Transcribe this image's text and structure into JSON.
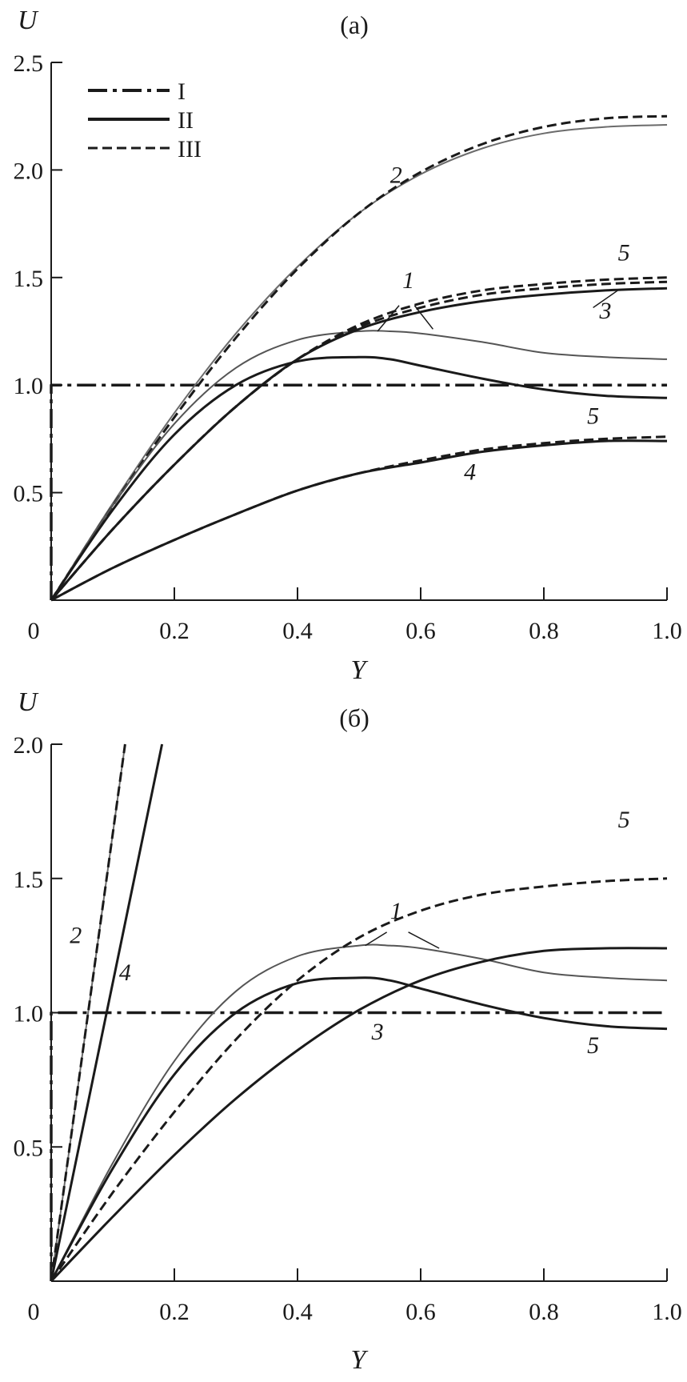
{
  "chart_data": [
    {
      "type": "line",
      "title": "(a)",
      "xlabel": "Y",
      "ylabel": "U",
      "xlim": [
        0,
        1
      ],
      "ylim": [
        0,
        2.5
      ],
      "xticks": [
        "0",
        "0.2",
        "0.4",
        "0.6",
        "0.8",
        "1.0"
      ],
      "yticks": [
        "0.5",
        "1.0",
        "1.5",
        "2.0",
        "2.5"
      ],
      "legend": {
        "position": "top-left",
        "entries": [
          {
            "label": "I",
            "style": "dashdot"
          },
          {
            "label": "II",
            "style": "solid"
          },
          {
            "label": "III",
            "style": "dashed"
          }
        ]
      },
      "series": [
        {
          "id": "a-I",
          "style": "dashdot",
          "width": 3.5,
          "color": "#1a1a1a",
          "x": [
            0,
            0,
            0.02,
            1.0
          ],
          "y": [
            0,
            1.0,
            1.0,
            1.0
          ]
        },
        {
          "id": "a-2-II",
          "style": "solid",
          "width": 2,
          "color": "#6b6b6b",
          "x": [
            0,
            0.1,
            0.2,
            0.3,
            0.4,
            0.5,
            0.6,
            0.7,
            0.8,
            0.9,
            1.0
          ],
          "y": [
            0,
            0.45,
            0.87,
            1.24,
            1.55,
            1.8,
            1.98,
            2.1,
            2.17,
            2.2,
            2.21
          ]
        },
        {
          "id": "a-2-III",
          "style": "dashed",
          "width": 3,
          "color": "#1a1a1a",
          "x": [
            0,
            0.1,
            0.2,
            0.3,
            0.4,
            0.5,
            0.6,
            0.7,
            0.8,
            0.9,
            1.0
          ],
          "y": [
            0,
            0.44,
            0.85,
            1.22,
            1.54,
            1.8,
            1.99,
            2.12,
            2.2,
            2.24,
            2.25
          ]
        },
        {
          "id": "a-1-II",
          "style": "solid",
          "width": 2,
          "color": "#555555",
          "x": [
            0,
            0.1,
            0.2,
            0.3,
            0.4,
            0.5,
            0.55,
            0.6,
            0.7,
            0.8,
            0.9,
            1.0
          ],
          "y": [
            0,
            0.44,
            0.82,
            1.08,
            1.21,
            1.25,
            1.25,
            1.24,
            1.2,
            1.15,
            1.13,
            1.12
          ]
        },
        {
          "id": "a-5-II",
          "style": "solid",
          "width": 3,
          "color": "#1a1a1a",
          "x": [
            0,
            0.1,
            0.2,
            0.3,
            0.4,
            0.5,
            0.55,
            0.6,
            0.7,
            0.8,
            0.9,
            1.0
          ],
          "y": [
            0,
            0.42,
            0.77,
            1.0,
            1.11,
            1.13,
            1.12,
            1.09,
            1.03,
            0.98,
            0.95,
            0.94
          ]
        },
        {
          "id": "a-3-II",
          "style": "solid",
          "width": 3,
          "color": "#1a1a1a",
          "x": [
            0,
            0.1,
            0.2,
            0.3,
            0.4,
            0.5,
            0.6,
            0.7,
            0.8,
            0.9,
            1.0
          ],
          "y": [
            0,
            0.33,
            0.63,
            0.9,
            1.12,
            1.26,
            1.34,
            1.39,
            1.42,
            1.44,
            1.45
          ]
        },
        {
          "id": "a-3-III",
          "style": "dashed",
          "width": 3,
          "color": "#1a1a1a",
          "x": [
            0,
            0.1,
            0.2,
            0.3,
            0.4,
            0.5,
            0.6,
            0.7,
            0.8,
            0.9,
            1.0
          ],
          "y": [
            0,
            0.33,
            0.63,
            0.9,
            1.12,
            1.27,
            1.36,
            1.42,
            1.45,
            1.47,
            1.48
          ]
        },
        {
          "id": "a-5-III",
          "style": "dashed",
          "width": 3,
          "color": "#1a1a1a",
          "x": [
            0,
            0.1,
            0.2,
            0.3,
            0.4,
            0.5,
            0.6,
            0.7,
            0.8,
            0.9,
            1.0
          ],
          "y": [
            0,
            0.33,
            0.63,
            0.9,
            1.12,
            1.28,
            1.38,
            1.44,
            1.47,
            1.49,
            1.5
          ]
        },
        {
          "id": "a-4-II",
          "style": "solid",
          "width": 3,
          "color": "#1a1a1a",
          "x": [
            0,
            0.1,
            0.2,
            0.3,
            0.4,
            0.5,
            0.6,
            0.7,
            0.8,
            0.9,
            1.0
          ],
          "y": [
            0,
            0.15,
            0.28,
            0.4,
            0.51,
            0.59,
            0.64,
            0.69,
            0.72,
            0.74,
            0.74
          ]
        },
        {
          "id": "a-4-III",
          "style": "dashed",
          "width": 3,
          "color": "#1a1a1a",
          "x": [
            0,
            0.1,
            0.2,
            0.3,
            0.4,
            0.5,
            0.6,
            0.7,
            0.8,
            0.9,
            1.0
          ],
          "y": [
            0,
            0.15,
            0.28,
            0.4,
            0.51,
            0.59,
            0.65,
            0.7,
            0.73,
            0.75,
            0.76
          ]
        }
      ],
      "annotations": [
        {
          "text": "2",
          "x": 0.56,
          "y": 1.94
        },
        {
          "text": "5",
          "x": 0.93,
          "y": 1.58
        },
        {
          "text": "1",
          "x": 0.58,
          "y": 1.45
        },
        {
          "text": "3",
          "x": 0.9,
          "y": 1.31
        },
        {
          "text": "5",
          "x": 0.88,
          "y": 0.82
        },
        {
          "text": "4",
          "x": 0.68,
          "y": 0.56
        }
      ]
    },
    {
      "type": "line",
      "title": "(б)",
      "xlabel": "Y",
      "ylabel": "U",
      "xlim": [
        0,
        1
      ],
      "ylim": [
        0,
        2
      ],
      "xticks": [
        "0",
        "0.2",
        "0.4",
        "0.6",
        "0.8",
        "1.0"
      ],
      "yticks": [
        "0.5",
        "1.0",
        "1.5",
        "2.0"
      ],
      "series": [
        {
          "id": "b-I",
          "style": "dashdot",
          "width": 3.5,
          "color": "#1a1a1a",
          "x": [
            0,
            0,
            0.02,
            1.0
          ],
          "y": [
            0,
            1.0,
            1.0,
            1.0
          ]
        },
        {
          "id": "b-2-II",
          "style": "solid",
          "width": 2,
          "color": "#6b6b6b",
          "x": [
            0,
            0.12
          ],
          "y": [
            0,
            2.0
          ]
        },
        {
          "id": "b-2-III",
          "style": "dashed",
          "width": 3,
          "color": "#1a1a1a",
          "x": [
            0,
            0.12
          ],
          "y": [
            0,
            2.0
          ]
        },
        {
          "id": "b-4-II",
          "style": "solid",
          "width": 3,
          "color": "#1a1a1a",
          "x": [
            0,
            0.18
          ],
          "y": [
            0,
            2.0
          ]
        },
        {
          "id": "b-1-II",
          "style": "solid",
          "width": 2,
          "color": "#555555",
          "x": [
            0,
            0.1,
            0.2,
            0.3,
            0.4,
            0.5,
            0.55,
            0.6,
            0.7,
            0.8,
            0.9,
            1.0
          ],
          "y": [
            0,
            0.44,
            0.82,
            1.08,
            1.21,
            1.25,
            1.25,
            1.24,
            1.2,
            1.15,
            1.13,
            1.12
          ]
        },
        {
          "id": "b-5-II",
          "style": "solid",
          "width": 3,
          "color": "#1a1a1a",
          "x": [
            0,
            0.1,
            0.2,
            0.3,
            0.4,
            0.5,
            0.55,
            0.6,
            0.7,
            0.8,
            0.9,
            1.0
          ],
          "y": [
            0,
            0.42,
            0.77,
            1.0,
            1.11,
            1.13,
            1.12,
            1.09,
            1.03,
            0.98,
            0.95,
            0.94
          ]
        },
        {
          "id": "b-5-III",
          "style": "dashed",
          "width": 3,
          "color": "#1a1a1a",
          "x": [
            0,
            0.1,
            0.2,
            0.3,
            0.4,
            0.5,
            0.6,
            0.7,
            0.8,
            0.9,
            1.0
          ],
          "y": [
            0,
            0.33,
            0.63,
            0.9,
            1.12,
            1.28,
            1.38,
            1.44,
            1.47,
            1.49,
            1.5
          ]
        },
        {
          "id": "b-3-II",
          "style": "solid",
          "width": 3,
          "color": "#1a1a1a",
          "x": [
            0,
            0.1,
            0.2,
            0.3,
            0.4,
            0.5,
            0.6,
            0.7,
            0.8,
            0.9,
            1.0
          ],
          "y": [
            0,
            0.24,
            0.47,
            0.68,
            0.86,
            1.01,
            1.12,
            1.19,
            1.23,
            1.24,
            1.24
          ]
        }
      ],
      "annotations": [
        {
          "text": "5",
          "x": 0.93,
          "y": 1.69
        },
        {
          "text": "1",
          "x": 0.56,
          "y": 1.35
        },
        {
          "text": "2",
          "x": 0.04,
          "y": 1.26
        },
        {
          "text": "4",
          "x": 0.12,
          "y": 1.12
        },
        {
          "text": "3",
          "x": 0.53,
          "y": 0.9
        },
        {
          "text": "5",
          "x": 0.88,
          "y": 0.85
        }
      ]
    }
  ]
}
